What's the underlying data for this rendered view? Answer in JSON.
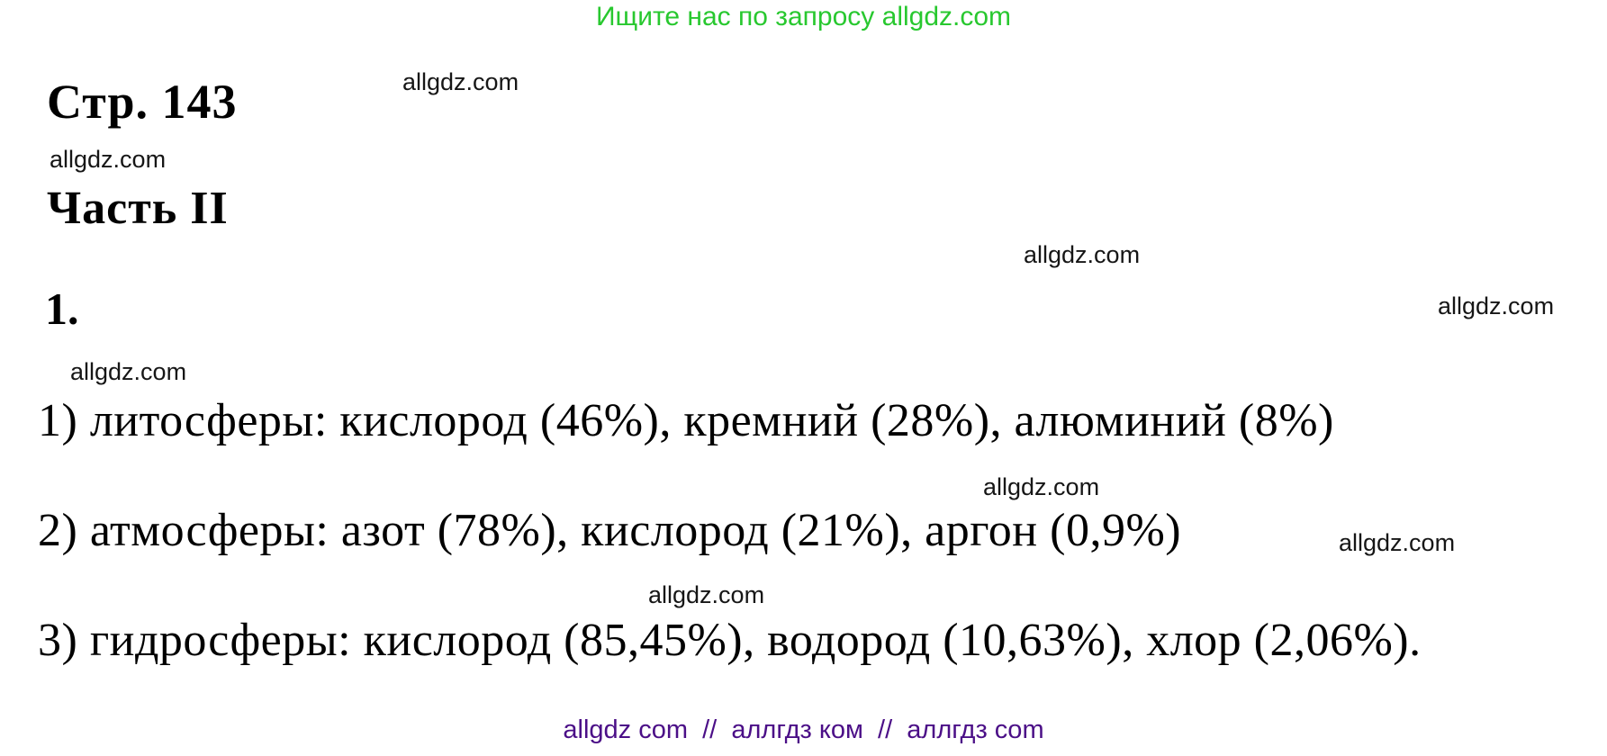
{
  "header": {
    "search_note": "Ищите нас по запросу allgdz.com",
    "color": "#28c82f"
  },
  "watermark": {
    "text": "allgdz.com"
  },
  "document": {
    "page_title": "Стр. 143",
    "part_title": "Часть II",
    "task_number": "1.",
    "answers": [
      {
        "text": "1) литосферы: кислород (46%), кремний (28%), алюминий (8%)"
      },
      {
        "text": "2) атмосферы: азот (78%), кислород (21%), аргон (0,9%)"
      },
      {
        "text": "3) гидросферы: кислород (85,45%), водород (10,63%), хлор (2,06%)."
      }
    ]
  },
  "footer": {
    "mirrors": "allgdz com  //  аллгдз ком  //  аллгдз com",
    "color": "#4b0f87"
  }
}
